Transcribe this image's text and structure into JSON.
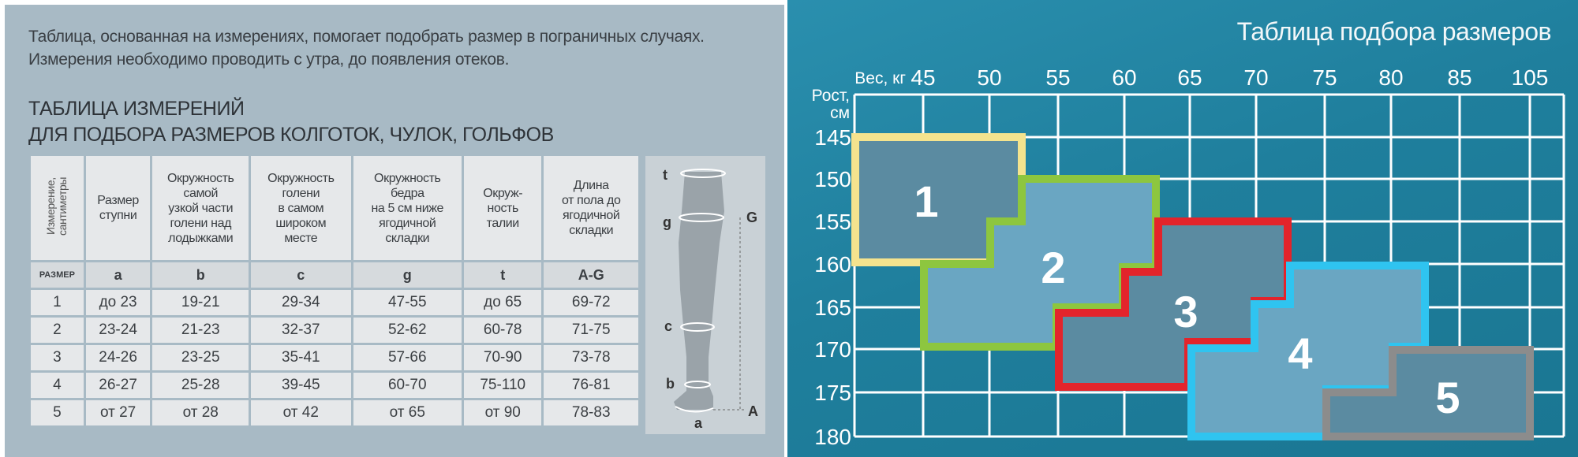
{
  "intro": "Таблица, основанная на измерениях, помогает подобрать размер в пограничных случаях. Измерения необходимо проводить с утра, до появления отеков.",
  "heading": {
    "line1": "ТАБЛИЦА ИЗМЕРЕНИЙ",
    "line2": "ДЛЯ ПОДБОРА РАЗМЕРОВ КОЛГОТОК, ЧУЛОК, ГОЛЬФОВ"
  },
  "table": {
    "corner": "Измерение,\nсантиметры",
    "headers": [
      "Размер\nступни",
      "Окружность\nсамой\nузкой части\nголени над\nлодыжками",
      "Окружность\nголени\nв самом\nшироком\nместе",
      "Окружность\nбедра\nна 5 см ниже\nягодичной\nскладки",
      "Окруж-\nность\nталии",
      "Длина\nот пола до\nягодичной\nскладки"
    ],
    "codes": [
      "РАЗМЕР",
      "a",
      "b",
      "c",
      "g",
      "t",
      "A-G"
    ],
    "rows": [
      [
        "1",
        "до 23",
        "19-21",
        "29-34",
        "47-55",
        "до 65",
        "69-72"
      ],
      [
        "2",
        "23-24",
        "21-23",
        "32-37",
        "52-62",
        "60-78",
        "71-75"
      ],
      [
        "3",
        "24-26",
        "23-25",
        "35-41",
        "57-66",
        "70-90",
        "73-78"
      ],
      [
        "4",
        "26-27",
        "25-28",
        "39-45",
        "60-70",
        "75-110",
        "76-81"
      ],
      [
        "5",
        "от 27",
        "от 28",
        "от 42",
        "от 65",
        "от 90",
        "78-83"
      ]
    ]
  },
  "figure_labels": {
    "t": "t",
    "g": "g",
    "c": "c",
    "b": "b",
    "a": "a",
    "G": "G",
    "A": "A"
  },
  "size_chart": {
    "title": "Таблица подбора размеров",
    "weight_label": "Вес, кг",
    "height_label": "Рост,\nсм",
    "weights": [
      "45",
      "50",
      "55",
      "60",
      "65",
      "70",
      "75",
      "80",
      "85",
      "105"
    ],
    "heights": [
      "145",
      "150",
      "155",
      "160",
      "165",
      "170",
      "175",
      "180"
    ],
    "sizes": [
      {
        "label": "1",
        "border": "#f4e38e",
        "fill": "#5b8ba1"
      },
      {
        "label": "2",
        "border": "#8dc63f",
        "fill": "#6aa6c2"
      },
      {
        "label": "3",
        "border": "#e3242b",
        "fill": "#5b8ba1"
      },
      {
        "label": "4",
        "border": "#2fc4f0",
        "fill": "#6aa6c2"
      },
      {
        "label": "5",
        "border": "#8c8c8c",
        "fill": "#5b8ba1"
      }
    ]
  }
}
